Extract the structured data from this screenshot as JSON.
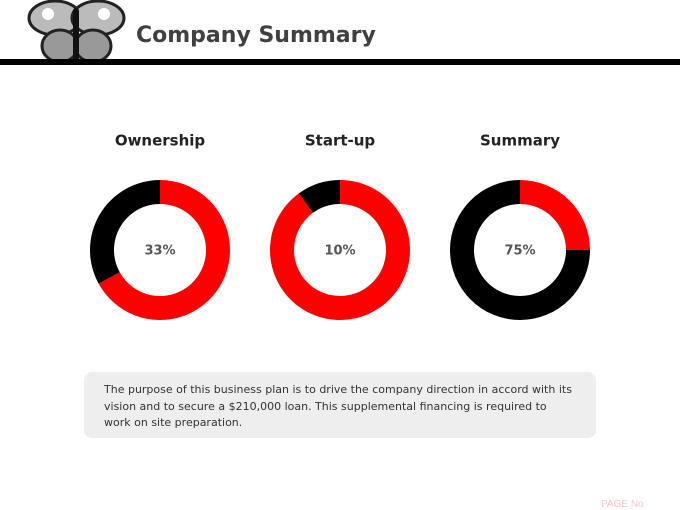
{
  "header": {
    "title": "Company Summary"
  },
  "chart_data": [
    {
      "type": "donut",
      "title": "Ownership",
      "values": [
        67,
        33
      ],
      "colors": [
        "#ff0000",
        "#000000"
      ],
      "value_labels": [
        null,
        "33%"
      ]
    },
    {
      "type": "donut",
      "title": "Start-up",
      "values": [
        90,
        10
      ],
      "colors": [
        "#ff0000",
        "#000000"
      ],
      "value_labels": [
        null,
        "10%"
      ]
    },
    {
      "type": "donut",
      "title": "Summary",
      "values": [
        25,
        75
      ],
      "colors": [
        "#ff0000",
        "#000000"
      ],
      "value_labels": [
        null,
        "75%"
      ]
    }
  ],
  "note": "The purpose of this business plan is to drive the company direction in accord with its vision and to secure a $210,000 loan. This supplemental financing is required to work on site preparation.",
  "footer": "PAGE No"
}
